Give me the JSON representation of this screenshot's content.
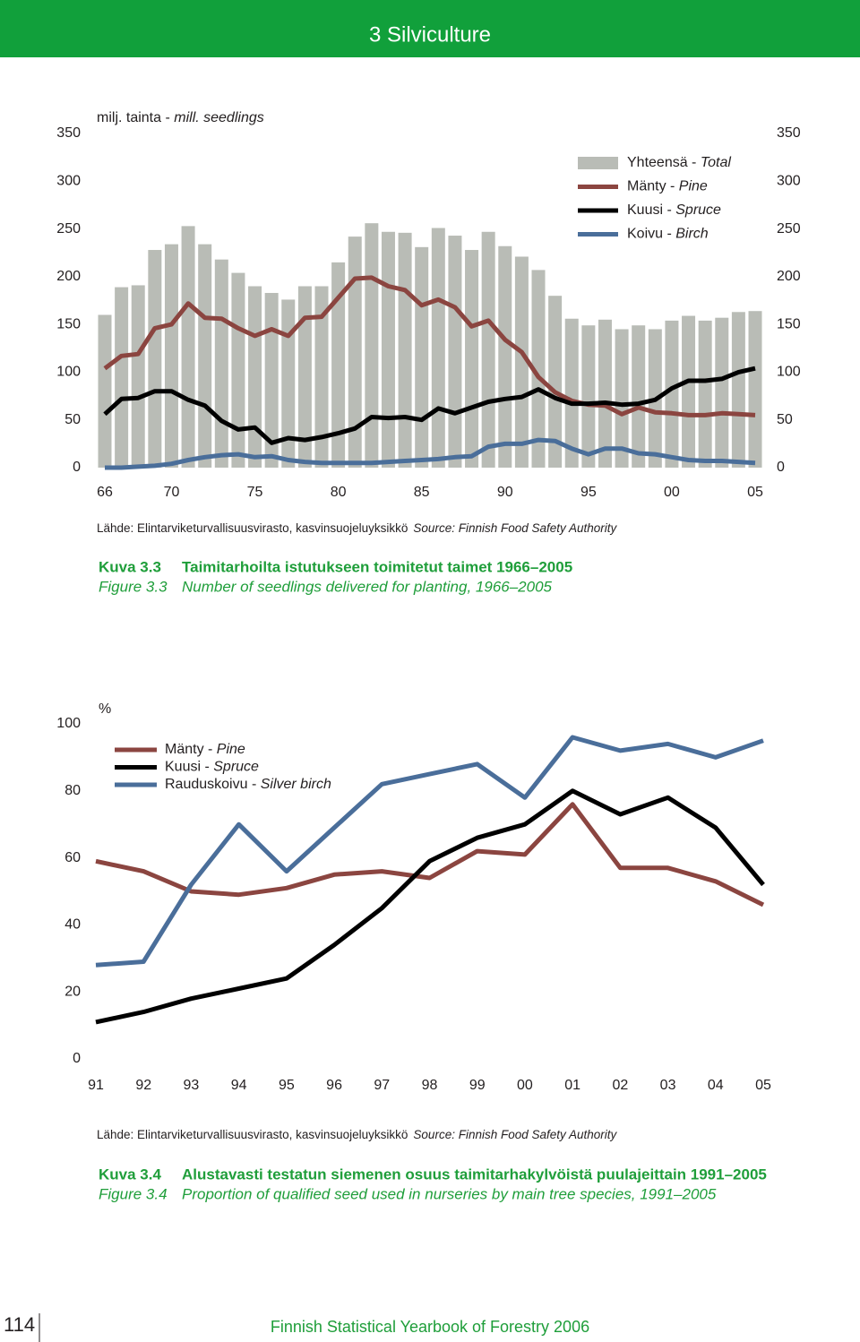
{
  "header": "3 Silviculture",
  "footer": {
    "page": "114",
    "title": "Finnish Statistical Yearbook of Forestry 2006"
  },
  "chart_data": [
    {
      "type": "combo",
      "y_title": "milj. tainta - mill. seedlings",
      "categories": [
        "66",
        null,
        null,
        null,
        "70",
        null,
        null,
        null,
        null,
        "75",
        null,
        null,
        null,
        null,
        "80",
        null,
        null,
        null,
        null,
        "85",
        null,
        null,
        null,
        null,
        "90",
        null,
        null,
        null,
        null,
        "95",
        null,
        null,
        null,
        null,
        "00",
        null,
        null,
        null,
        null,
        "05"
      ],
      "series": [
        {
          "name": "Yhteensä - Total",
          "type": "bar",
          "color": "#b9bcb6",
          "values": [
            160,
            189,
            191,
            228,
            234,
            253,
            234,
            218,
            204,
            190,
            183,
            176,
            190,
            190,
            215,
            242,
            256,
            247,
            246,
            231,
            251,
            243,
            228,
            247,
            232,
            221,
            207,
            180,
            156,
            149,
            155,
            145,
            149,
            145,
            154,
            159,
            154,
            157,
            163,
            164
          ]
        },
        {
          "name": "Mänty - Pine",
          "type": "line",
          "color": "#8b4540",
          "values": [
            104,
            117,
            119,
            146,
            150,
            172,
            157,
            156,
            146,
            138,
            145,
            138,
            157,
            158,
            178,
            198,
            199,
            190,
            186,
            170,
            176,
            168,
            148,
            154,
            134,
            121,
            95,
            79,
            70,
            66,
            65,
            56,
            63,
            58,
            57,
            55,
            55,
            57,
            56,
            55
          ]
        },
        {
          "name": "Kuusi - Spruce",
          "type": "line",
          "color": "#000000",
          "values": [
            56,
            72,
            73,
            80,
            80,
            71,
            65,
            49,
            40,
            42,
            26,
            31,
            29,
            32,
            36,
            41,
            53,
            52,
            53,
            50,
            62,
            57,
            63,
            69,
            72,
            74,
            82,
            73,
            67,
            67,
            68,
            66,
            67,
            71,
            83,
            91,
            91,
            93,
            100,
            104
          ]
        },
        {
          "name": "Koivu - Birch",
          "type": "line",
          "color": "#4a6e9a",
          "values": [
            0,
            0,
            1,
            2,
            4,
            8,
            11,
            13,
            14,
            11,
            12,
            8,
            6,
            5,
            5,
            5,
            5,
            6,
            7,
            8,
            9,
            11,
            12,
            22,
            25,
            25,
            29,
            28,
            20,
            14,
            20,
            20,
            15,
            14,
            11,
            8,
            7,
            7,
            6,
            5
          ]
        }
      ],
      "ylim": [
        0,
        350
      ],
      "yticks": [
        0,
        50,
        100,
        150,
        200,
        250,
        300,
        350
      ],
      "right_axis": true,
      "grid": false,
      "legend": "top-right",
      "source": [
        "Lähde: Elintarviketurvallisuusvirasto, kasvinsuojeluyksikkö",
        "Source: Finnish Food Safety Authority"
      ],
      "caption": {
        "fi_label": "Kuva 3.3",
        "fi_text": "Taimitarhoilta istutukseen toimitetut taimet 1966–2005",
        "en_label": "Figure 3.3",
        "en_text": "Number of seedlings delivered for planting, 1966–2005"
      }
    },
    {
      "type": "line",
      "y_title": "%",
      "categories": [
        "91",
        "92",
        "93",
        "94",
        "95",
        "96",
        "97",
        "98",
        "99",
        "00",
        "01",
        "02",
        "03",
        "04",
        "05"
      ],
      "series": [
        {
          "name": "Mänty - Pine",
          "color": "#8b4540",
          "values": [
            59,
            56,
            50,
            49,
            51,
            55,
            56,
            54,
            62,
            61,
            76,
            57,
            57,
            53,
            46
          ]
        },
        {
          "name": "Kuusi - Spruce",
          "color": "#000000",
          "values": [
            11,
            14,
            18,
            21,
            24,
            34,
            45,
            59,
            66,
            70,
            80,
            73,
            78,
            69,
            52
          ]
        },
        {
          "name": "Rauduskoivu - Silver birch",
          "color": "#4a6e9a",
          "values": [
            28,
            29,
            52,
            70,
            56,
            69,
            82,
            85,
            88,
            78,
            96,
            92,
            94,
            90,
            95
          ]
        }
      ],
      "ylim": [
        0,
        100
      ],
      "yticks": [
        0,
        20,
        40,
        60,
        80,
        100
      ],
      "right_axis": false,
      "grid": false,
      "legend": "top-left",
      "source": [
        "Lähde: Elintarviketurvallisuusvirasto, kasvinsuojeluyksikkö",
        "Source: Finnish Food Safety Authority"
      ],
      "caption": {
        "fi_label": "Kuva 3.4",
        "fi_text": "Alustavasti testatun siemenen osuus taimitarhakylvöistä puulajeittain 1991–2005",
        "en_label": "Figure 3.4",
        "en_text": "Proportion of qualified seed used in nurseries by main tree species, 1991–2005"
      }
    }
  ]
}
